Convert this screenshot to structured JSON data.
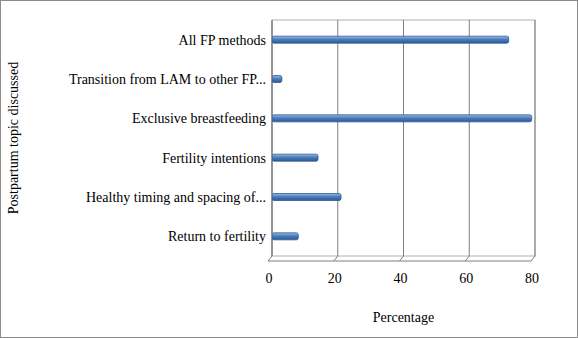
{
  "chart_data": {
    "type": "bar",
    "orientation": "horizontal",
    "categories": [
      "Return to fertility",
      "Healthy timing and spacing of...",
      "Fertility intentions",
      "Exclusive breastfeeding",
      "Transition from LAM to other FP...",
      "All FP methods"
    ],
    "values": [
      8,
      21,
      14,
      79,
      3,
      72
    ],
    "color": "#4a7ebb",
    "xlim": [
      0,
      80
    ],
    "xticks": [
      0,
      20,
      40,
      60,
      80
    ],
    "x_label": "Percentage",
    "y_label": "Postpartum topic discussed",
    "grid": true
  }
}
